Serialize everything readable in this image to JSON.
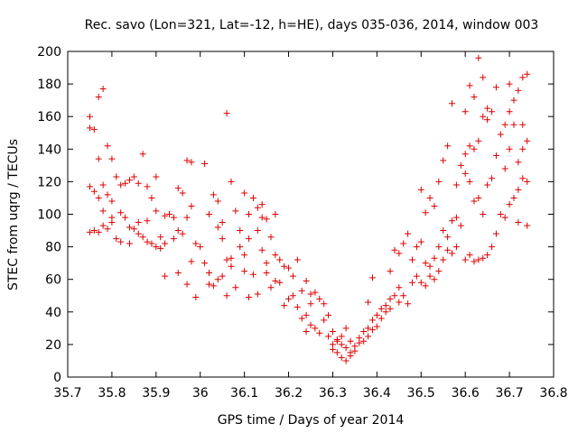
{
  "chart_data": {
    "type": "scatter",
    "title": "Rec. savo (Lon=321, Lat=-12, h=HE), days 035-036, 2014, window 003",
    "xlabel": "GPS time / Days of year 2014",
    "ylabel": "STEC from uqrg / TECUs",
    "xlim": [
      35.7,
      36.8
    ],
    "ylim": [
      0,
      200
    ],
    "xticks": [
      "35.7",
      "35.8",
      "35.9",
      "36",
      "36.1",
      "36.2",
      "36.3",
      "36.4",
      "36.5",
      "36.6",
      "36.7",
      "36.8"
    ],
    "xtick_values": [
      35.7,
      35.8,
      35.9,
      36.0,
      36.1,
      36.2,
      36.3,
      36.4,
      36.5,
      36.6,
      36.7,
      36.8
    ],
    "yticks": [
      "0",
      "20",
      "40",
      "60",
      "80",
      "100",
      "120",
      "140",
      "160",
      "180",
      "200"
    ],
    "ytick_values": [
      0,
      20,
      40,
      60,
      80,
      100,
      120,
      140,
      160,
      180,
      200
    ],
    "grid": false,
    "marker": "plus",
    "color": "#dd0000",
    "series": [
      {
        "name": "",
        "points": [
          [
            35.75,
            160
          ],
          [
            35.75,
            153
          ],
          [
            35.76,
            152
          ],
          [
            35.77,
            172
          ],
          [
            35.78,
            177
          ],
          [
            35.79,
            142
          ],
          [
            35.77,
            134
          ],
          [
            35.8,
            134
          ],
          [
            35.75,
            117
          ],
          [
            35.76,
            114
          ],
          [
            35.77,
            110
          ],
          [
            35.78,
            118
          ],
          [
            35.79,
            112
          ],
          [
            35.8,
            108
          ],
          [
            35.81,
            123
          ],
          [
            35.82,
            118
          ],
          [
            35.83,
            119
          ],
          [
            35.84,
            121
          ],
          [
            35.85,
            123
          ],
          [
            35.86,
            119
          ],
          [
            35.87,
            137
          ],
          [
            35.88,
            117
          ],
          [
            35.89,
            110
          ],
          [
            35.9,
            123
          ],
          [
            35.76,
            90
          ],
          [
            35.77,
            89
          ],
          [
            35.78,
            93
          ],
          [
            35.79,
            91
          ],
          [
            35.8,
            98
          ],
          [
            35.81,
            85
          ],
          [
            35.82,
            101
          ],
          [
            35.83,
            98
          ],
          [
            35.84,
            92
          ],
          [
            35.85,
            91
          ],
          [
            35.86,
            88
          ],
          [
            35.87,
            86
          ],
          [
            35.88,
            83
          ],
          [
            35.89,
            82
          ],
          [
            35.9,
            80
          ],
          [
            35.91,
            79
          ],
          [
            35.75,
            89
          ],
          [
            35.78,
            102
          ],
          [
            35.8,
            95
          ],
          [
            35.82,
            83
          ],
          [
            35.84,
            82
          ],
          [
            35.86,
            95
          ],
          [
            35.88,
            96
          ],
          [
            35.9,
            102
          ],
          [
            35.91,
            86
          ],
          [
            35.92,
            82
          ],
          [
            35.93,
            100
          ],
          [
            35.94,
            98
          ],
          [
            35.95,
            116
          ],
          [
            35.96,
            113
          ],
          [
            35.97,
            133
          ],
          [
            35.98,
            132
          ],
          [
            35.92,
            99
          ],
          [
            35.94,
            85
          ],
          [
            35.95,
            90
          ],
          [
            35.96,
            88
          ],
          [
            35.97,
            98
          ],
          [
            35.98,
            105
          ],
          [
            35.99,
            82
          ],
          [
            36.0,
            80
          ],
          [
            35.92,
            62
          ],
          [
            35.95,
            64
          ],
          [
            35.97,
            57
          ],
          [
            35.98,
            71
          ],
          [
            35.99,
            49
          ],
          [
            36.01,
            131
          ],
          [
            36.02,
            100
          ],
          [
            36.03,
            112
          ],
          [
            36.04,
            108
          ],
          [
            36.05,
            95
          ],
          [
            36.06,
            162
          ],
          [
            36.07,
            120
          ],
          [
            36.08,
            102
          ],
          [
            36.09,
            90
          ],
          [
            36.1,
            113
          ],
          [
            36.11,
            100
          ],
          [
            36.01,
            70
          ],
          [
            36.02,
            64
          ],
          [
            36.03,
            56
          ],
          [
            36.04,
            60
          ],
          [
            36.05,
            62
          ],
          [
            36.06,
            72
          ],
          [
            36.07,
            68
          ],
          [
            36.08,
            55
          ],
          [
            36.02,
            57
          ],
          [
            36.04,
            92
          ],
          [
            36.05,
            85
          ],
          [
            36.06,
            50
          ],
          [
            36.07,
            73
          ],
          [
            36.09,
            80
          ],
          [
            36.1,
            75
          ],
          [
            36.11,
            85
          ],
          [
            36.12,
            110
          ],
          [
            36.13,
            90
          ],
          [
            36.14,
            106
          ],
          [
            36.15,
            97
          ],
          [
            36.16,
            86
          ],
          [
            36.17,
            100
          ],
          [
            36.13,
            104
          ],
          [
            36.14,
            98
          ],
          [
            36.1,
            65
          ],
          [
            36.11,
            49
          ],
          [
            36.12,
            63
          ],
          [
            36.13,
            51
          ],
          [
            36.14,
            78
          ],
          [
            36.15,
            70
          ],
          [
            36.16,
            55
          ],
          [
            36.17,
            75
          ],
          [
            36.18,
            72
          ],
          [
            36.19,
            68
          ],
          [
            36.2,
            67
          ],
          [
            36.21,
            62
          ],
          [
            36.22,
            72
          ],
          [
            36.23,
            53
          ],
          [
            36.24,
            59
          ],
          [
            36.25,
            51
          ],
          [
            36.15,
            64
          ],
          [
            36.17,
            59
          ],
          [
            36.18,
            58
          ],
          [
            36.19,
            44
          ],
          [
            36.2,
            48
          ],
          [
            36.21,
            50
          ],
          [
            36.22,
            43
          ],
          [
            36.23,
            36
          ],
          [
            36.24,
            38
          ],
          [
            36.25,
            45
          ],
          [
            36.26,
            52
          ],
          [
            36.27,
            48
          ],
          [
            36.28,
            45
          ],
          [
            36.24,
            28
          ],
          [
            36.25,
            32
          ],
          [
            36.26,
            30
          ],
          [
            36.27,
            27
          ],
          [
            36.28,
            35
          ],
          [
            36.29,
            38
          ],
          [
            36.3,
            28
          ],
          [
            36.31,
            22
          ],
          [
            36.32,
            20
          ],
          [
            36.33,
            18
          ],
          [
            36.34,
            15
          ],
          [
            36.29,
            25
          ],
          [
            36.3,
            17
          ],
          [
            36.31,
            15
          ],
          [
            36.32,
            12
          ],
          [
            36.33,
            10
          ],
          [
            36.34,
            13
          ],
          [
            36.35,
            19
          ],
          [
            36.36,
            21
          ],
          [
            36.3,
            20
          ],
          [
            36.31,
            23
          ],
          [
            36.32,
            25
          ],
          [
            36.33,
            30
          ],
          [
            36.34,
            22
          ],
          [
            36.35,
            16
          ],
          [
            36.36,
            24
          ],
          [
            36.37,
            22
          ],
          [
            36.38,
            46
          ],
          [
            36.39,
            61
          ],
          [
            36.37,
            28
          ],
          [
            36.38,
            30
          ],
          [
            36.39,
            35
          ],
          [
            36.4,
            38
          ],
          [
            36.41,
            42
          ],
          [
            36.42,
            40
          ],
          [
            36.38,
            25
          ],
          [
            36.39,
            29
          ],
          [
            36.4,
            31
          ],
          [
            36.41,
            36
          ],
          [
            36.42,
            44
          ],
          [
            36.43,
            48
          ],
          [
            36.44,
            50
          ],
          [
            36.45,
            55
          ],
          [
            36.43,
            65
          ],
          [
            36.44,
            78
          ],
          [
            36.45,
            76
          ],
          [
            36.46,
            82
          ],
          [
            36.47,
            88
          ],
          [
            36.48,
            72
          ],
          [
            36.49,
            80
          ],
          [
            36.5,
            83
          ],
          [
            36.43,
            42
          ],
          [
            36.45,
            46
          ],
          [
            36.46,
            50
          ],
          [
            36.47,
            45
          ],
          [
            36.48,
            58
          ],
          [
            36.49,
            62
          ],
          [
            36.5,
            58
          ],
          [
            36.51,
            56
          ],
          [
            36.5,
            115
          ],
          [
            36.51,
            101
          ],
          [
            36.52,
            110
          ],
          [
            36.53,
            105
          ],
          [
            36.54,
            120
          ],
          [
            36.55,
            133
          ],
          [
            36.56,
            142
          ],
          [
            36.57,
            168
          ],
          [
            36.51,
            70
          ],
          [
            36.52,
            68
          ],
          [
            36.53,
            73
          ],
          [
            36.54,
            80
          ],
          [
            36.55,
            90
          ],
          [
            36.56,
            86
          ],
          [
            36.57,
            96
          ],
          [
            36.58,
            98
          ],
          [
            36.52,
            62
          ],
          [
            36.53,
            60
          ],
          [
            36.54,
            65
          ],
          [
            36.55,
            72
          ],
          [
            36.56,
            78
          ],
          [
            36.57,
            76
          ],
          [
            36.58,
            80
          ],
          [
            36.59,
            93
          ],
          [
            36.58,
            118
          ],
          [
            36.59,
            130
          ],
          [
            36.6,
            137
          ],
          [
            36.61,
            142
          ],
          [
            36.62,
            140
          ],
          [
            36.63,
            145
          ],
          [
            36.64,
            160
          ],
          [
            36.65,
            165
          ],
          [
            36.6,
            163
          ],
          [
            36.61,
            179
          ],
          [
            36.62,
            172
          ],
          [
            36.63,
            196
          ],
          [
            36.64,
            184
          ],
          [
            36.65,
            158
          ],
          [
            36.66,
            163
          ],
          [
            36.67,
            178
          ],
          [
            36.6,
            125
          ],
          [
            36.61,
            120
          ],
          [
            36.62,
            108
          ],
          [
            36.63,
            110
          ],
          [
            36.64,
            100
          ],
          [
            36.65,
            118
          ],
          [
            36.66,
            122
          ],
          [
            36.67,
            136
          ],
          [
            36.6,
            72
          ],
          [
            36.61,
            75
          ],
          [
            36.62,
            71
          ],
          [
            36.63,
            72
          ],
          [
            36.64,
            73
          ],
          [
            36.65,
            75
          ],
          [
            36.66,
            80
          ],
          [
            36.67,
            88
          ],
          [
            36.68,
            149
          ],
          [
            36.69,
            155
          ],
          [
            36.7,
            163
          ],
          [
            36.71,
            170
          ],
          [
            36.72,
            176
          ],
          [
            36.73,
            184
          ],
          [
            36.74,
            186
          ],
          [
            36.7,
            180
          ],
          [
            36.68,
            100
          ],
          [
            36.69,
            98
          ],
          [
            36.7,
            106
          ],
          [
            36.71,
            110
          ],
          [
            36.72,
            115
          ],
          [
            36.73,
            122
          ],
          [
            36.74,
            120
          ],
          [
            36.74,
            93
          ],
          [
            36.72,
            95
          ],
          [
            36.73,
            140
          ],
          [
            36.74,
            145
          ],
          [
            36.73,
            155
          ],
          [
            36.72,
            132
          ],
          [
            36.71,
            155
          ],
          [
            36.7,
            140
          ],
          [
            36.69,
            128
          ]
        ]
      }
    ]
  }
}
